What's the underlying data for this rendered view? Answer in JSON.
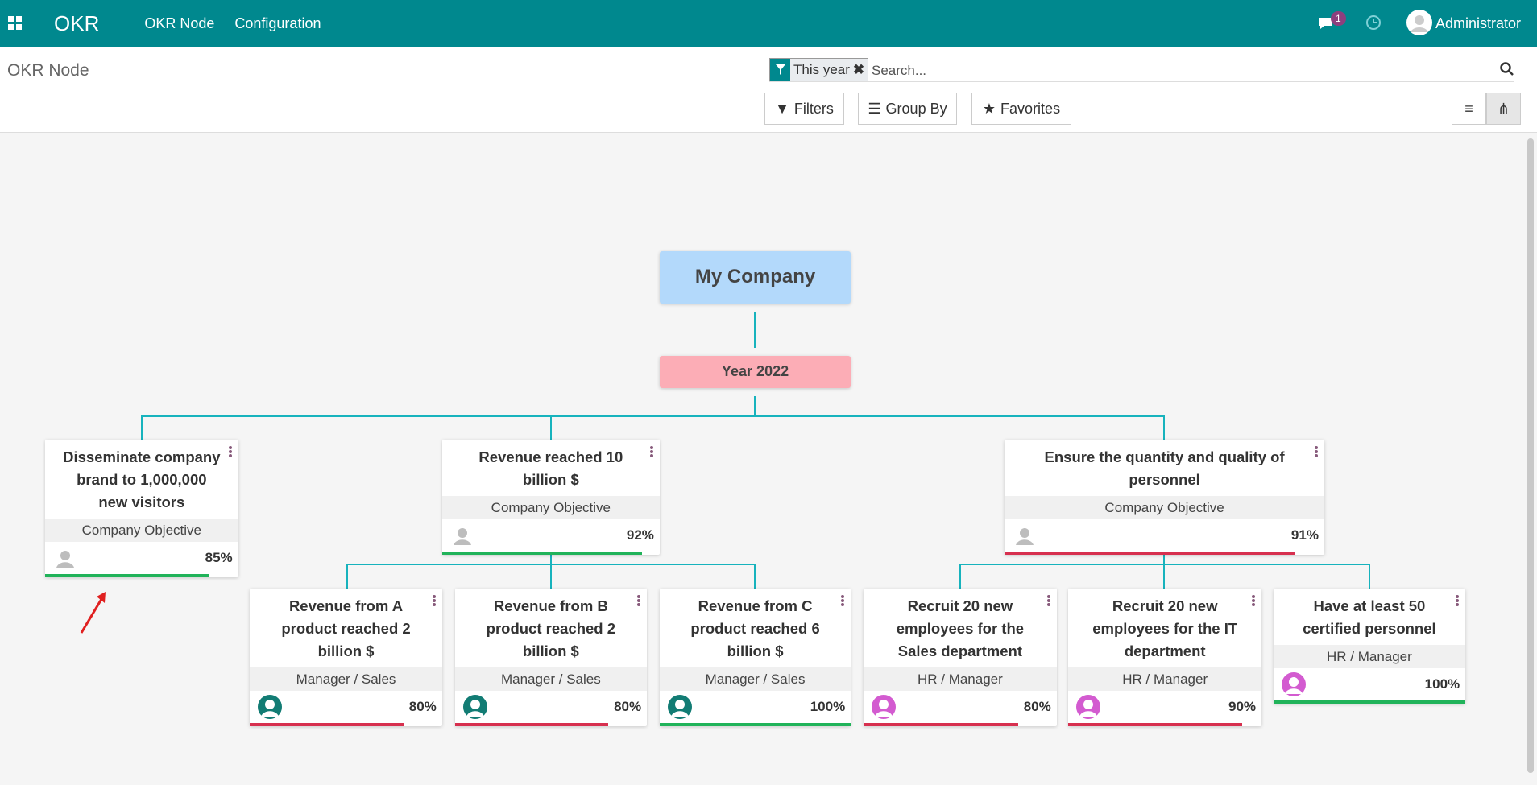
{
  "navbar": {
    "app": "OKR",
    "menu": [
      "OKR Node",
      "Configuration"
    ],
    "notifications": 1,
    "user": "Administrator"
  },
  "control_panel": {
    "breadcrumb": "OKR Node",
    "facet": "This year",
    "search_placeholder": "Search...",
    "buttons": [
      "Filters",
      "Group By",
      "Favorites"
    ]
  },
  "root": {
    "label": "My Company"
  },
  "year": {
    "label": "Year 2022"
  },
  "nodes": [
    {
      "title": "Disseminate company brand to 1,000,000 new visitors",
      "subtitle": "Company Objective",
      "progress": {
        "value": 85,
        "label": "85%"
      },
      "bar_color": "#21b35a",
      "avatar_color": "#bdbdbd"
    },
    {
      "title": "Revenue reached 10 billion $",
      "subtitle": "Company Objective",
      "progress": {
        "value": 92,
        "label": "92%"
      },
      "bar_color": "#21b35a",
      "avatar_color": "#bdbdbd"
    },
    {
      "title": "Ensure the quantity and quality of personnel",
      "subtitle": "Company Objective",
      "progress": {
        "value": 91,
        "label": "91%"
      },
      "bar_color": "#d7304f",
      "avatar_color": "#bdbdbd"
    },
    {
      "title": "Revenue from A product reached 2 billion $",
      "subtitle": "Manager / Sales",
      "progress": {
        "value": 80,
        "label": "80%"
      },
      "bar_color": "#d7304f",
      "avatar_color": "#127c74"
    },
    {
      "title": "Revenue from B product reached 2 billion $",
      "subtitle": "Manager / Sales",
      "progress": {
        "value": 80,
        "label": "80%"
      },
      "bar_color": "#d7304f",
      "avatar_color": "#127c74"
    },
    {
      "title": "Revenue from C product reached 6 billion $",
      "subtitle": "Manager / Sales",
      "progress": {
        "value": 100,
        "label": "100%"
      },
      "bar_color": "#21b35a",
      "avatar_color": "#127c74"
    },
    {
      "title": "Recruit 20 new employees for the Sales department",
      "subtitle": "HR / Manager",
      "progress": {
        "value": 80,
        "label": "80%"
      },
      "bar_color": "#d7304f",
      "avatar_color": "#d35bd0"
    },
    {
      "title": "Recruit 20 new employees for the IT department",
      "subtitle": "HR / Manager",
      "progress": {
        "value": 90,
        "label": "90%"
      },
      "bar_color": "#d7304f",
      "avatar_color": "#d35bd0"
    },
    {
      "title": "Have at least 50 certified personnel",
      "subtitle": "HR / Manager",
      "progress": {
        "value": 100,
        "label": "100%"
      },
      "bar_color": "#21b35a",
      "avatar_color": "#d35bd0"
    }
  ]
}
